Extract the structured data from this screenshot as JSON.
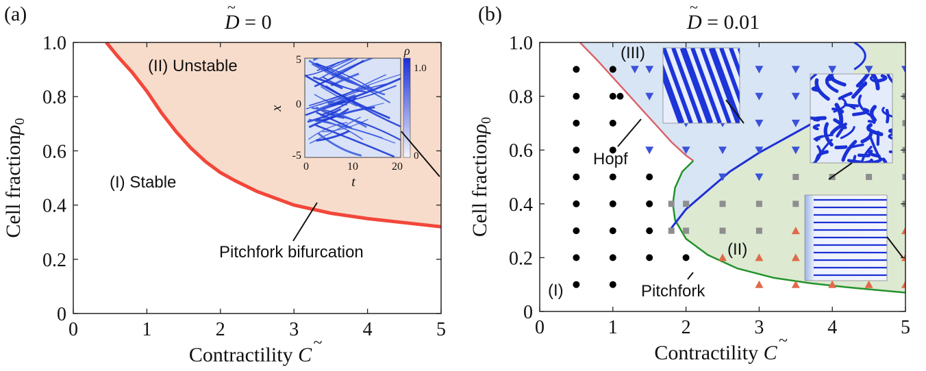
{
  "chart_data": [
    {
      "panel_label": "(a)",
      "type": "area",
      "title_symbol": "D",
      "title_value": "= 0",
      "xlabel_text": "Contractility",
      "xlabel_symbol": "C",
      "ylabel_text": "Cell fraction",
      "ylabel_symbol": "ρ",
      "ylabel_sub": "0",
      "xlim": [
        0,
        5
      ],
      "ylim": [
        0,
        1
      ],
      "x_ticks": [
        "0",
        "1",
        "2",
        "3",
        "4",
        "5"
      ],
      "y_ticks": [
        "0",
        "0.2",
        "0.4",
        "0.6",
        "0.8",
        "1.0"
      ],
      "colors": {
        "unstable_fill": "#f8dccb",
        "boundary": "#f2473a"
      },
      "boundary": {
        "x": [
          0.45,
          0.6,
          0.8,
          1.0,
          1.2,
          1.4,
          1.6,
          1.8,
          2.0,
          2.2,
          2.5,
          3.0,
          3.5,
          4.0,
          4.5,
          5.0
        ],
        "y": [
          1.0,
          0.95,
          0.89,
          0.82,
          0.74,
          0.67,
          0.61,
          0.56,
          0.52,
          0.49,
          0.45,
          0.4,
          0.37,
          0.35,
          0.335,
          0.32
        ]
      },
      "annotations": {
        "unstable": "(II) Unstable",
        "stable": "(I) Stable",
        "pitchfork": "Pitchfork bifurcation"
      },
      "inset": {
        "xlabel": "t",
        "ylabel": "x",
        "x_ticks": [
          "0",
          "10",
          "20"
        ],
        "y_ticks": [
          "5",
          "0",
          "-5"
        ],
        "colorbar_label": "ρ",
        "colorbar_ticks": [
          "1.0",
          "0"
        ]
      }
    },
    {
      "panel_label": "(b)",
      "type": "scatter",
      "title_symbol": "D",
      "title_value": "= 0.01",
      "xlabel_text": "Contractility",
      "xlabel_symbol": "C",
      "ylabel_text": "Cell fraction",
      "ylabel_symbol": "ρ",
      "ylabel_sub": "0",
      "xlim": [
        0,
        5
      ],
      "ylim": [
        0,
        1
      ],
      "x_ticks": [
        "0",
        "1",
        "2",
        "3",
        "4",
        "5"
      ],
      "y_ticks": [
        "0",
        "0.2",
        "0.4",
        "0.6",
        "0.8",
        "1.0"
      ],
      "colors": {
        "region3_fill": "#d8e5f4",
        "region2_fill": "#dde9d1",
        "hopf": "#d9646a",
        "blue_line": "#1f2fd4",
        "pitchfork": "#22922a",
        "stable_marker": "#000000",
        "triangle_down": "#3a52d9",
        "square": "#8e8e8e",
        "triangle_up": "#e06a4a"
      },
      "hopf_curve": {
        "x": [
          0.55,
          0.8,
          1.0,
          1.2,
          1.4,
          1.6,
          1.8,
          2.0,
          2.1
        ],
        "y": [
          1.0,
          0.93,
          0.87,
          0.81,
          0.75,
          0.69,
          0.63,
          0.58,
          0.56
        ]
      },
      "blue_curve": {
        "x": [
          1.8,
          2.0,
          2.3,
          2.6,
          3.0,
          3.4,
          3.8,
          4.1
        ],
        "y": [
          0.31,
          0.38,
          0.45,
          0.52,
          0.59,
          0.65,
          0.71,
          0.76
        ]
      },
      "blue_arc": {
        "x": [
          4.3,
          4.45,
          4.5,
          4.45,
          4.3
        ],
        "y": [
          1.0,
          0.98,
          0.95,
          0.92,
          0.9
        ]
      },
      "pitchfork_curve": {
        "x": [
          2.1,
          1.95,
          1.85,
          1.82,
          1.85,
          2.0,
          2.3,
          2.7,
          3.2,
          3.7,
          4.2,
          4.6,
          5.0
        ],
        "y": [
          0.56,
          0.52,
          0.46,
          0.4,
          0.34,
          0.27,
          0.21,
          0.16,
          0.125,
          0.105,
          0.09,
          0.08,
          0.07
        ]
      },
      "series": [
        {
          "marker": "circle",
          "points": [
            [
              0.5,
              0.1
            ],
            [
              0.5,
              0.2
            ],
            [
              0.5,
              0.3
            ],
            [
              0.5,
              0.4
            ],
            [
              0.5,
              0.5
            ],
            [
              0.5,
              0.6
            ],
            [
              0.5,
              0.7
            ],
            [
              0.5,
              0.8
            ],
            [
              0.5,
              0.9
            ],
            [
              1.0,
              0.1
            ],
            [
              1.0,
              0.2
            ],
            [
              1.0,
              0.3
            ],
            [
              1.0,
              0.4
            ],
            [
              1.0,
              0.5
            ],
            [
              1.0,
              0.6
            ],
            [
              1.0,
              0.7
            ],
            [
              1.0,
              0.8
            ],
            [
              1.0,
              0.9
            ],
            [
              1.1,
              0.8
            ],
            [
              1.5,
              0.2
            ],
            [
              1.5,
              0.3
            ],
            [
              1.5,
              0.4
            ],
            [
              1.5,
              0.5
            ],
            [
              2.0,
              0.2
            ]
          ]
        },
        {
          "marker": "triangle-down",
          "points": [
            [
              1.3,
              0.9
            ],
            [
              1.5,
              0.9
            ],
            [
              2.0,
              0.9
            ],
            [
              2.5,
              0.9
            ],
            [
              3.0,
              0.9
            ],
            [
              3.5,
              0.9
            ],
            [
              4.0,
              0.9
            ],
            [
              4.5,
              0.9
            ],
            [
              5.0,
              0.9
            ],
            [
              1.5,
              0.8
            ],
            [
              2.0,
              0.8
            ],
            [
              2.5,
              0.8
            ],
            [
              3.0,
              0.8
            ],
            [
              3.5,
              0.8
            ],
            [
              2.0,
              0.7
            ],
            [
              2.5,
              0.7
            ],
            [
              3.0,
              0.7
            ],
            [
              3.5,
              0.7
            ],
            [
              1.5,
              0.6
            ],
            [
              2.0,
              0.6
            ],
            [
              2.5,
              0.6
            ],
            [
              3.0,
              0.6
            ],
            [
              3.5,
              0.6
            ],
            [
              2.5,
              0.5
            ],
            [
              3.0,
              0.5
            ]
          ]
        },
        {
          "marker": "square",
          "points": [
            [
              5.0,
              0.8
            ],
            [
              5.0,
              0.7
            ],
            [
              5.0,
              0.6
            ],
            [
              3.5,
              0.5
            ],
            [
              4.0,
              0.5
            ],
            [
              4.5,
              0.5
            ],
            [
              5.0,
              0.5
            ],
            [
              1.8,
              0.4
            ],
            [
              2.0,
              0.4
            ],
            [
              2.5,
              0.4
            ],
            [
              3.0,
              0.4
            ],
            [
              3.5,
              0.4
            ],
            [
              4.0,
              0.4
            ],
            [
              4.5,
              0.4
            ],
            [
              5.0,
              0.4
            ],
            [
              1.8,
              0.3
            ],
            [
              2.0,
              0.3
            ],
            [
              2.5,
              0.3
            ],
            [
              3.0,
              0.3
            ]
          ]
        },
        {
          "marker": "triangle-up",
          "points": [
            [
              3.5,
              0.3
            ],
            [
              4.0,
              0.3
            ],
            [
              4.5,
              0.3
            ],
            [
              5.0,
              0.3
            ],
            [
              2.5,
              0.2
            ],
            [
              3.0,
              0.2
            ],
            [
              3.5,
              0.2
            ],
            [
              4.0,
              0.2
            ],
            [
              4.5,
              0.2
            ],
            [
              5.0,
              0.2
            ],
            [
              3.0,
              0.1
            ],
            [
              3.5,
              0.1
            ],
            [
              4.0,
              0.1
            ],
            [
              4.5,
              0.1
            ],
            [
              5.0,
              0.1
            ]
          ]
        }
      ],
      "annotations": {
        "region3": "(III)",
        "region2": "(II)",
        "region1": "(I)",
        "hopf": "Hopf",
        "pitchfork": "Pitchfork"
      }
    }
  ]
}
